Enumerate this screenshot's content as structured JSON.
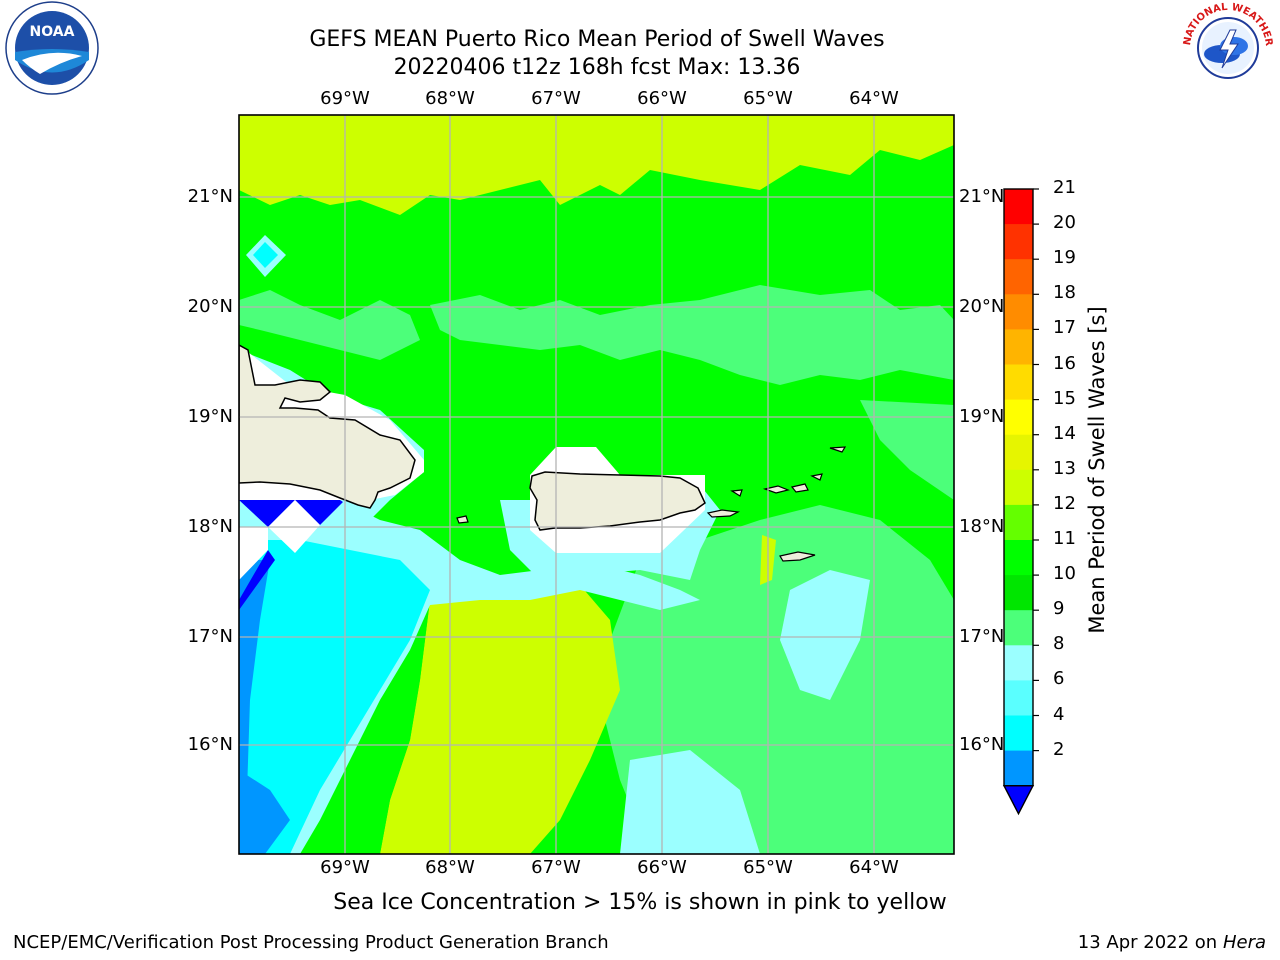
{
  "title_line1": "GEFS MEAN Puerto Rico Mean Period of Swell Waves",
  "title_line2": "20220406 t12z 168h fcst   Max: 13.36",
  "lon_ticks": [
    "69°W",
    "68°W",
    "67°W",
    "66°W",
    "65°W",
    "64°W"
  ],
  "lat_ticks": [
    "21°N",
    "20°N",
    "19°N",
    "18°N",
    "17°N",
    "16°N"
  ],
  "colorbar": {
    "title": "Mean Period of Swell Waves [s]",
    "labels": [
      "21",
      "20",
      "19",
      "18",
      "17",
      "16",
      "15",
      "14",
      "13",
      "12",
      "11",
      "10",
      "9",
      "8",
      "6",
      "4",
      "2"
    ],
    "colors": [
      "#ff0000",
      "#ff3200",
      "#ff6400",
      "#ff8c00",
      "#ffb400",
      "#ffdc00",
      "#ffff00",
      "#e6f500",
      "#cdff00",
      "#64ff00",
      "#00ff00",
      "#00e600",
      "#4cff7a",
      "#9bffff",
      "#5affff",
      "#00ffff",
      "#0096ff",
      "#0000ff"
    ]
  },
  "sea_ice_note": "Sea Ice Concentration > 15% is shown in pink to yellow",
  "footer_left": "NCEP/EMC/Verification Post Processing Product Generation Branch",
  "footer_date": "13 Apr 2022 on",
  "footer_host": "Hera",
  "logos": {
    "noaa": "NOAA",
    "nws_text": "NATIONAL WEATHER SERVICE"
  },
  "map_layers": {
    "fill_colors": {
      "lime_yellow": "#cdff00",
      "green": "#00ff00",
      "light_green": "#4cff7a",
      "pale_cyan": "#9bffff",
      "cyan": "#00ffff",
      "blue": "#0096ff",
      "dark_blue": "#0000ff",
      "land": "#eeeedc"
    }
  }
}
